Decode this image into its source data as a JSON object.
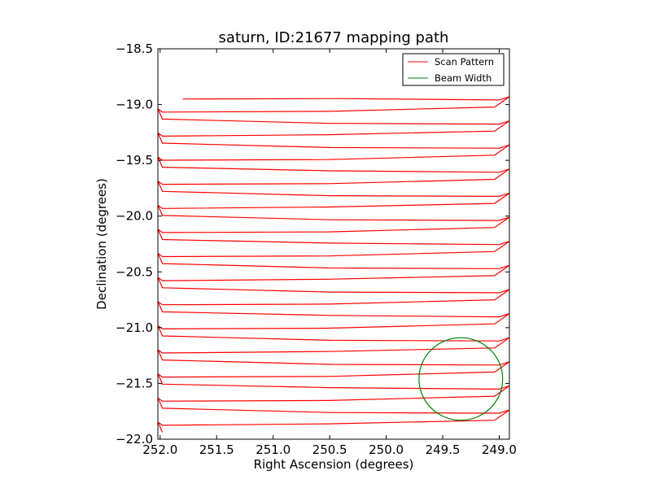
{
  "chart_data": {
    "type": "line",
    "title": "saturn, ID:21677 mapping path",
    "xlabel": "Right Ascension (degrees)",
    "ylabel": "Declination (degrees)",
    "xlim": [
      252.02,
      248.91
    ],
    "ylim": [
      -22.0,
      -18.5
    ],
    "x_ticks": [
      "252.0",
      "251.5",
      "251.0",
      "250.5",
      "250.0",
      "249.5",
      "249.0"
    ],
    "x_tick_values": [
      252.0,
      251.5,
      251.0,
      250.5,
      250.0,
      249.5,
      249.0
    ],
    "y_ticks": [
      "−18.5",
      "−19.0",
      "−19.5",
      "−20.0",
      "−20.5",
      "−21.0",
      "−21.5",
      "−22.0"
    ],
    "y_tick_values": [
      -18.5,
      -19.0,
      -19.5,
      -20.0,
      -20.5,
      -21.0,
      -21.5,
      -22.0
    ],
    "legend": {
      "placement": "top-right"
    },
    "series": [
      {
        "name": "Scan Pattern",
        "color": "#ff0000",
        "kind": "raster",
        "x_start": 251.8,
        "x_min": 248.91,
        "x_max": 252.02,
        "x_inner_left": 251.98,
        "x_inner_right": 249.0,
        "dec_start": -18.95,
        "dec_end": -21.92,
        "row_spacing": 0.108,
        "row_dip": 0.06
      },
      {
        "name": "Beam Width",
        "color": "#008000",
        "kind": "circle",
        "center_ra": 249.34,
        "center_dec": -21.46,
        "radius_deg": 0.37
      }
    ]
  }
}
